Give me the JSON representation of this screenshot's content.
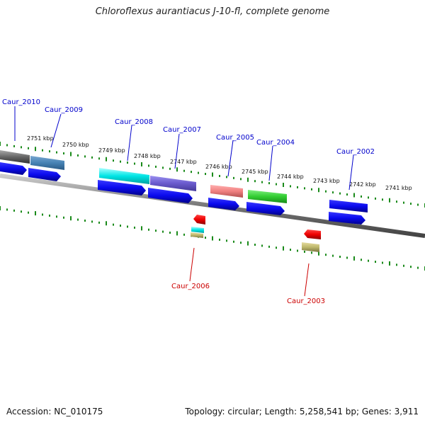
{
  "title": "Chloroflexus aurantiacus J-10-fl, complete genome",
  "footer": {
    "accession": "Accession: NC_010175",
    "summary": "Topology: circular; Length: 5,258,541 bp; Genes: 3,911"
  },
  "scale_labels": [
    "2751 kbp",
    "2750 kbp",
    "2749 kbp",
    "2748 kbp",
    "2747 kbp",
    "2746 kbp",
    "2745 kbp",
    "2744 kbp",
    "2743 kbp",
    "2742 kbp",
    "2741 kbp"
  ],
  "gene_labels": {
    "caur_2010": "Caur_2010",
    "caur_2009": "Caur_2009",
    "caur_2008": "Caur_2008",
    "caur_2007": "Caur_2007",
    "caur_2006": "Caur_2006",
    "caur_2005": "Caur_2005",
    "caur_2004": "Caur_2004",
    "caur_2003": "Caur_2003",
    "caur_2002": "Caur_2002"
  },
  "colors": {
    "label_forward": "#0000cc",
    "label_reverse": "#cc0000",
    "tick": "#1a8a1a",
    "backbone": "#777777",
    "cds_forward": "#0a0aee",
    "cds_reverse": "#ee0000"
  }
}
